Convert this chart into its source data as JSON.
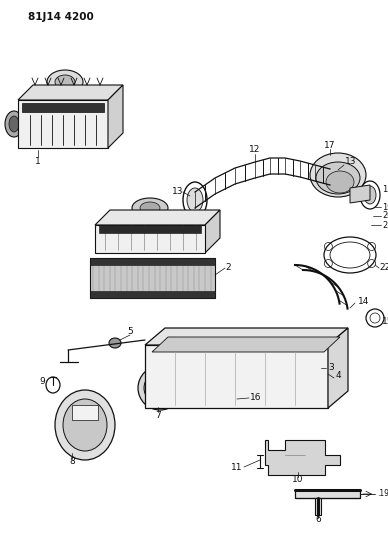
{
  "title": "81J14 4200",
  "bg": "#ffffff",
  "lc": "#111111",
  "figsize": [
    3.88,
    5.33
  ],
  "dpi": 100
}
